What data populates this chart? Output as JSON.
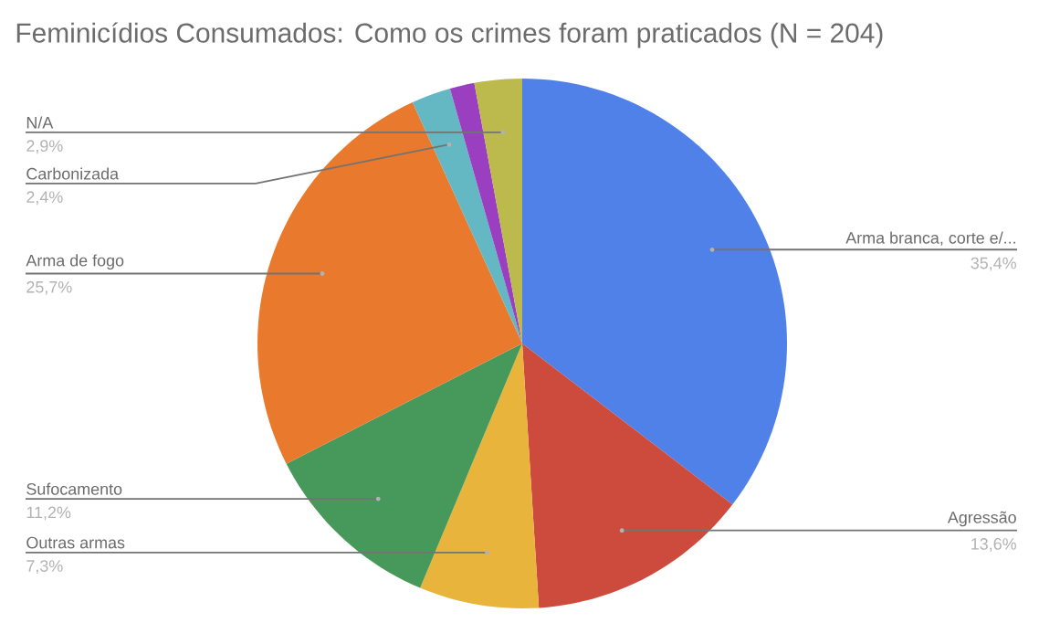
{
  "chart_data": {
    "type": "pie",
    "title": "Feminicídios Consumados: Como os crimes foram praticados (N = 204)",
    "categories": [
      "Arma branca, corte e/...",
      "Agressão",
      "Outras armas",
      "Sufocamento",
      "Arma de fogo",
      "Carbonizada",
      null,
      "N/A"
    ],
    "values": [
      35.4,
      13.6,
      7.3,
      11.2,
      25.7,
      2.4,
      1.5,
      2.9
    ],
    "value_labels": [
      "35,4%",
      "13,6%",
      "7,3%",
      "11,2%",
      "25,7%",
      "2,4%",
      null,
      "2,9%"
    ],
    "colors": [
      "#4f81e8",
      "#cc4b3c",
      "#e9b43c",
      "#46995a",
      "#e9792c",
      "#63b8c4",
      "#9a3fbf",
      "#bcba4c"
    ]
  }
}
